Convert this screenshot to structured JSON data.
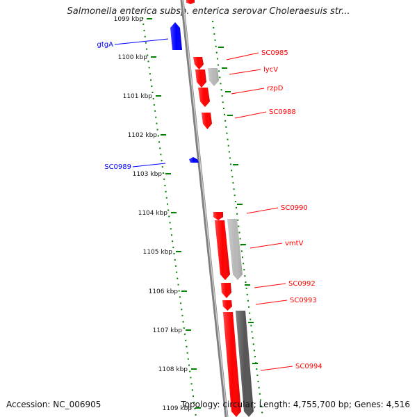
{
  "title": "Salmonella enterica subsp. enterica serovar Choleraesuis str...",
  "footer": {
    "accession": "Accession: NC_006905",
    "topology": "Topology: circular; Length: 4,755,700 bp; Genes: 4,516"
  },
  "colors": {
    "forward": "#ff0000",
    "reverse": "#0000ff",
    "pseudo": "#b8b8b8",
    "dark_feature": "#555555",
    "backbone": "#808080",
    "tick": "#008000"
  },
  "ticks": [
    "1099 kbp",
    "1100 kbp",
    "1101 kbp",
    "1102 kbp",
    "1103 kbp",
    "1104 kbp",
    "1105 kbp",
    "1106 kbp",
    "1107 kbp",
    "1108 kbp",
    "1109 kbp"
  ],
  "genes": [
    {
      "label": "gtgA",
      "strand": "reverse"
    },
    {
      "label": "SC0985",
      "strand": "forward"
    },
    {
      "label": "lycV",
      "strand": "forward"
    },
    {
      "label": "rzpD",
      "strand": "forward"
    },
    {
      "label": "SC0988",
      "strand": "forward"
    },
    {
      "label": "SC0989",
      "strand": "reverse"
    },
    {
      "label": "SC0990",
      "strand": "forward"
    },
    {
      "label": "vmtV",
      "strand": "forward"
    },
    {
      "label": "SC0992",
      "strand": "forward"
    },
    {
      "label": "SC0993",
      "strand": "forward"
    },
    {
      "label": "SC0994",
      "strand": "forward"
    }
  ]
}
